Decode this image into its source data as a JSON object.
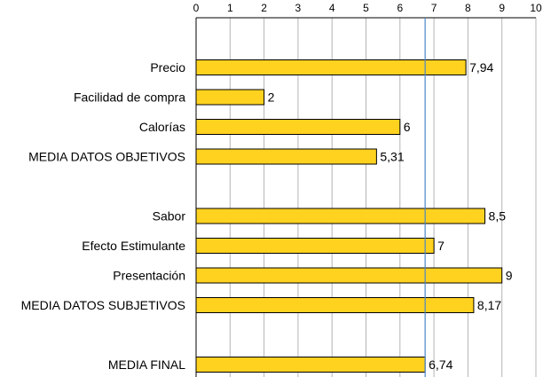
{
  "chart_data": {
    "type": "bar",
    "orientation": "horizontal",
    "title": "",
    "xlabel": "",
    "ylabel": "",
    "xlim": [
      0,
      10
    ],
    "x_ticks": [
      "0",
      "1",
      "2",
      "3",
      "4",
      "5",
      "6",
      "7",
      "8",
      "9",
      "10"
    ],
    "x_axis_position": "top",
    "grid": true,
    "reference_line": {
      "value": 6.74,
      "color": "#4a86c8"
    },
    "bar_color": "#ffd21f",
    "bar_edge_color": "#000000",
    "categories": [
      "Precio",
      "Facilidad de compra",
      "Calorías",
      "MEDIA DATOS OBJETIVOS",
      "",
      "Sabor",
      "Efecto Estimulante",
      "Presentación",
      "MEDIA DATOS SUBJETIVOS",
      "",
      "MEDIA FINAL"
    ],
    "values": [
      7.94,
      2,
      6,
      5.31,
      null,
      8.5,
      7,
      9,
      8.17,
      null,
      6.74
    ],
    "value_labels": [
      "7,94",
      "2",
      "6",
      "5,31",
      "",
      "8,5",
      "7",
      "9",
      "8,17",
      "",
      "6,74"
    ]
  }
}
